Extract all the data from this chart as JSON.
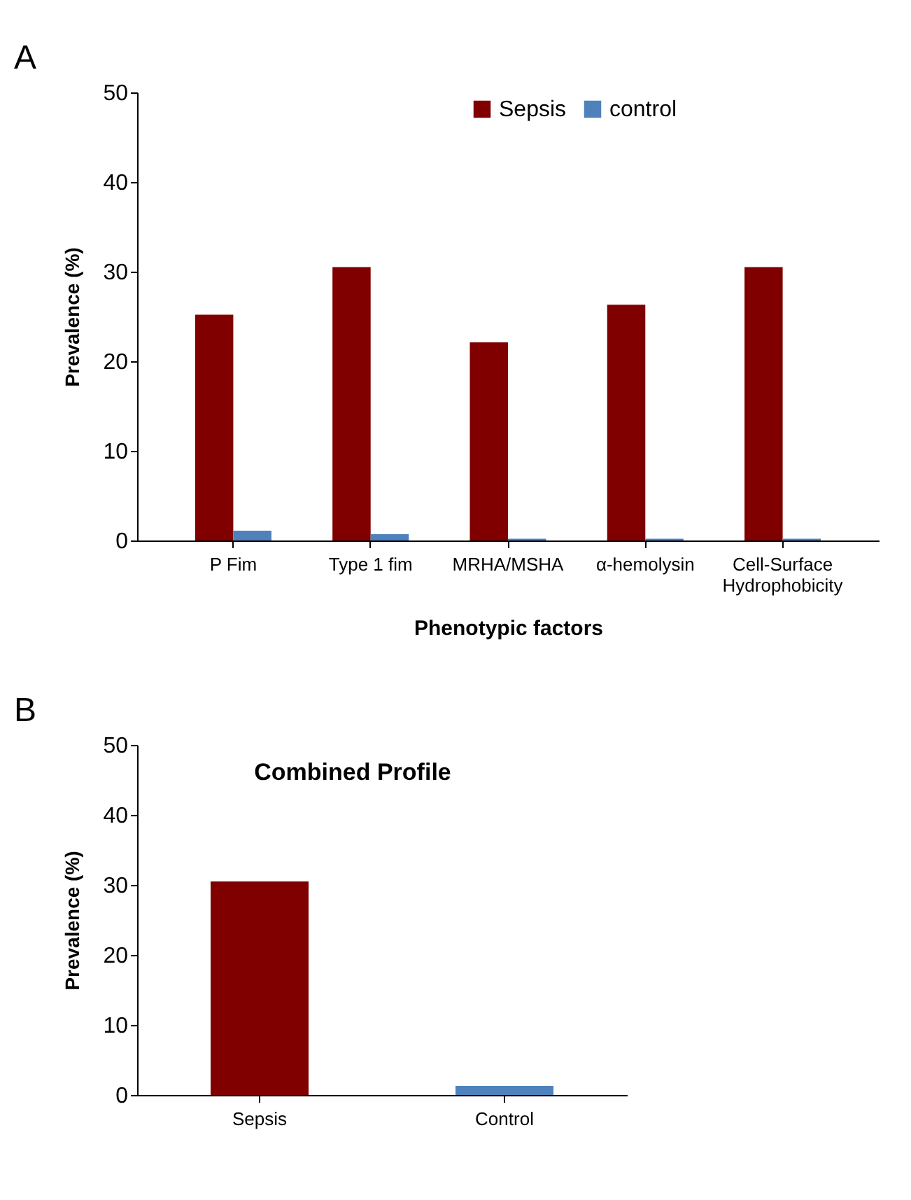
{
  "chart_data": [
    {
      "type": "bar",
      "annotations": [
        "A"
      ],
      "xlabel": "Phenotypic factors",
      "ylabel": "Prevalence (%)",
      "categories": [
        "P Fim",
        "Type 1 fim",
        "MRHA/MSHA",
        "α-hemolysin",
        "Cell-Surface\nHydrophobicity"
      ],
      "series": [
        {
          "name": "Sepsis",
          "color": "#800000",
          "values": [
            25.2,
            30.5,
            22.1,
            26.3,
            30.5
          ]
        },
        {
          "name": "control",
          "color": "#4f81bd",
          "values": [
            1.1,
            0.7,
            0.2,
            0.2,
            0.2
          ]
        }
      ],
      "ylim": [
        0,
        50
      ],
      "yticks": [
        0,
        10,
        20,
        30,
        40,
        50
      ],
      "grid": false,
      "legend": "top"
    },
    {
      "type": "bar",
      "annotations": [
        "B"
      ],
      "title": "Combined Profile",
      "ylabel": "Prevalence (%)",
      "categories": [
        "Sepsis",
        "Control"
      ],
      "values": [
        30.5,
        1.3
      ],
      "colors": [
        "#800000",
        "#4f81bd"
      ],
      "ylim": [
        0,
        50
      ],
      "yticks": [
        0,
        10,
        20,
        30,
        40,
        50
      ],
      "grid": false
    }
  ]
}
